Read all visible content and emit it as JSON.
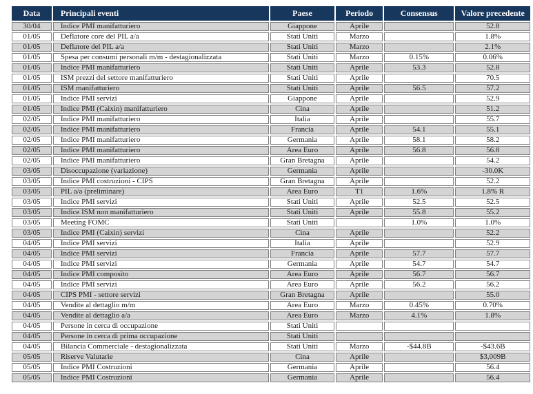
{
  "table": {
    "columns": [
      {
        "key": "data",
        "label": "Data"
      },
      {
        "key": "evento",
        "label": "Principali eventi"
      },
      {
        "key": "paese",
        "label": "Paese"
      },
      {
        "key": "periodo",
        "label": "Periodo"
      },
      {
        "key": "consensus",
        "label": "Consensus"
      },
      {
        "key": "valore",
        "label": "Valore precedente"
      }
    ],
    "rows": [
      [
        "30/04",
        "Indice PMI manifatturiero",
        "Giappone",
        "Aprile",
        "",
        "52.8"
      ],
      [
        "01/05",
        "Deflatore core del PIL a/a",
        "Stati Uniti",
        "Marzo",
        "",
        "1.8%"
      ],
      [
        "01/05",
        "Deflatore del PIL a/a",
        "Stati Uniti",
        "Marzo",
        "",
        "2.1%"
      ],
      [
        "01/05",
        "Spesa per consumi personali m/m - destagionalizzata",
        "Stati Uniti",
        "Marzo",
        "0.15%",
        "0.06%"
      ],
      [
        "01/05",
        "Indice PMI manifatturiero",
        "Stati Uniti",
        "Aprile",
        "53.3",
        "52.8"
      ],
      [
        "01/05",
        "ISM prezzi del settore manifatturiero",
        "Stati Uniti",
        "Aprile",
        "",
        "70.5"
      ],
      [
        "01/05",
        "ISM manifatturiero",
        "Stati Uniti",
        "Aprile",
        "56.5",
        "57.2"
      ],
      [
        "01/05",
        "Indice PMI servizi",
        "Giappone",
        "Aprile",
        "",
        "52.9"
      ],
      [
        "01/05",
        "Indice PMI (Caixin) manifatturiero",
        "Cina",
        "Aprile",
        "",
        "51.2"
      ],
      [
        "02/05",
        "Indice PMI manifatturiero",
        "Italia",
        "Aprile",
        "",
        "55.7"
      ],
      [
        "02/05",
        "Indice PMI manifatturiero",
        "Francia",
        "Aprile",
        "54.1",
        "55.1"
      ],
      [
        "02/05",
        "Indice PMI manifatturiero",
        "Germania",
        "Aprile",
        "58.1",
        "58.2"
      ],
      [
        "02/05",
        "Indice PMI manifatturiero",
        "Area Euro",
        "Aprile",
        "56.8",
        "56.8"
      ],
      [
        "02/05",
        "Indice PMI manifatturiero",
        "Gran Bretagna",
        "Aprile",
        "",
        "54.2"
      ],
      [
        "03/05",
        "Disoccupazione (variazione)",
        "Germania",
        "Aprile",
        "",
        "-30.0K"
      ],
      [
        "03/05",
        "Indice PMI costruzioni - CIPS",
        "Gran Bretagna",
        "Aprile",
        "",
        "52.2"
      ],
      [
        "03/05",
        "PIL a/a (preliminare)",
        "Area Euro",
        "T1",
        "1.6%",
        "1.8% R"
      ],
      [
        "03/05",
        "Indice PMI servizi",
        "Stati Uniti",
        "Aprile",
        "52.5",
        "52.5"
      ],
      [
        "03/05",
        "Indice ISM non manifatturiero",
        "Stati Uniti",
        "Aprile",
        "55.8",
        "55.2"
      ],
      [
        "03/05",
        "Meeting FOMC",
        "Stati Uniti",
        "",
        "1.0%",
        "1.0%"
      ],
      [
        "03/05",
        "Indice PMI (Caixin) servizi",
        "Cina",
        "Aprile",
        "",
        "52.2"
      ],
      [
        "04/05",
        "Indice PMI servizi",
        "Italia",
        "Aprile",
        "",
        "52.9"
      ],
      [
        "04/05",
        "Indice PMI servizi",
        "Francia",
        "Aprile",
        "57.7",
        "57.7"
      ],
      [
        "04/05",
        "Indice PMI servizi",
        "Germania",
        "Aprile",
        "54.7",
        "54.7"
      ],
      [
        "04/05",
        "Indice PMI composito",
        "Area Euro",
        "Aprile",
        "56.7",
        "56.7"
      ],
      [
        "04/05",
        "Indice PMI servizi",
        "Area Euro",
        "Aprile",
        "56.2",
        "56.2"
      ],
      [
        "04/05",
        "CIPS PMI - settore servizi",
        "Gran Bretagna",
        "Aprile",
        "",
        "55.0"
      ],
      [
        "04/05",
        "Vendite al dettaglio m/m",
        "Area Euro",
        "Marzo",
        "0.45%",
        "0.70%"
      ],
      [
        "04/05",
        "Vendite al dettaglio a/a",
        "Area Euro",
        "Marzo",
        "4.1%",
        "1.8%"
      ],
      [
        "04/05",
        "Persone in cerca di occupazione",
        "Stati Uniti",
        "",
        "",
        ""
      ],
      [
        "04/05",
        "Persone in cerca di prima occupazione",
        "Stati Uniti",
        "",
        "",
        ""
      ],
      [
        "04/05",
        "Bilancia Commerciale - destagionalizzata",
        "Stati Uniti",
        "Marzo",
        "-$44.8B",
        "-$43.6B"
      ],
      [
        "05/05",
        "Riserve Valutarie",
        "Cina",
        "Aprile",
        "",
        "$3,009B"
      ],
      [
        "05/05",
        "Indice PMI Costruzioni",
        "Germania",
        "Aprile",
        "",
        "56.4"
      ],
      [
        "05/05",
        "Indice PMI Costruzioni",
        "Germania",
        "Aprile",
        "",
        "56.4"
      ]
    ]
  },
  "colors": {
    "header_background": "#17375d",
    "header_text": "#ffffff",
    "row_stripe": "#d4d4d4",
    "row_plain": "#ffffff",
    "cell_border": "#7f7f7f"
  }
}
